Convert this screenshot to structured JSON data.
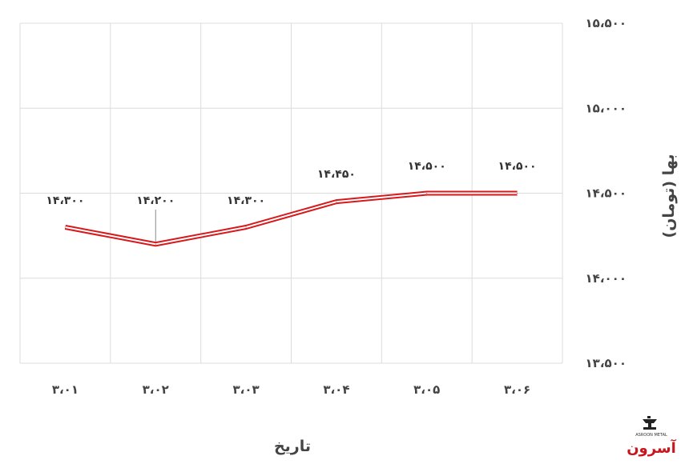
{
  "chart_data": {
    "type": "line",
    "categories": [
      "۳،۰۱",
      "۳،۰۲",
      "۳،۰۳",
      "۳،۰۴",
      "۳،۰۵",
      "۳،۰۶"
    ],
    "series": [
      {
        "values": [
          14300,
          14200,
          14300,
          14450,
          14500,
          14500
        ],
        "labels": [
          "۱۴،۳۰۰",
          "۱۴،۲۰۰",
          "۱۴،۳۰۰",
          "۱۴،۴۵۰",
          "۱۴،۵۰۰",
          "۱۴،۵۰۰"
        ]
      }
    ],
    "y_ticks": [
      13500,
      14000,
      14500,
      15000,
      15500
    ],
    "y_tick_labels": [
      "۱۳،۵۰۰",
      "۱۴،۰۰۰",
      "۱۴،۵۰۰",
      "۱۵،۰۰۰",
      "۱۵،۵۰۰"
    ],
    "ylim": [
      13500,
      15500
    ],
    "xlabel": "تاریخ",
    "ylabel": "بها (تومان)",
    "grid": true,
    "line_color": "#d7191c"
  },
  "logo": {
    "text": "آسرون",
    "subtext": "ASROON METAL"
  }
}
